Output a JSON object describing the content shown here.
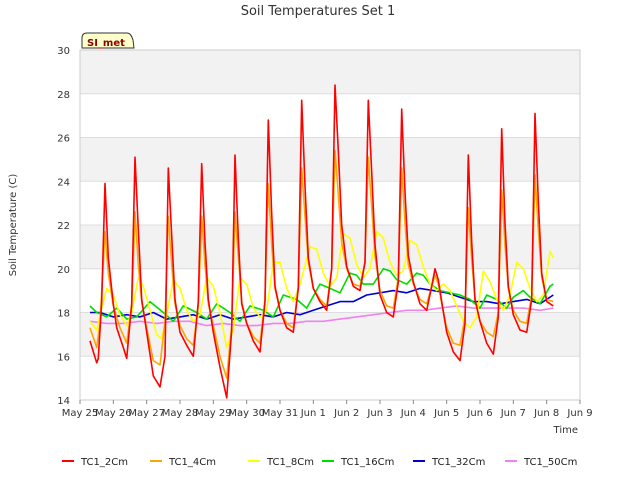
{
  "chart_data": {
    "type": "line",
    "title": "Soil Temperatures Set 1",
    "xlabel": "Time",
    "ylabel": "Soil Temperature (C)",
    "badge": "SI_met",
    "ylim": [
      14,
      30
    ],
    "yticks": [
      14,
      16,
      18,
      20,
      22,
      24,
      26,
      28,
      30
    ],
    "xlim": [
      0,
      15
    ],
    "xticks": [
      {
        "v": 0,
        "label": "May 25"
      },
      {
        "v": 1,
        "label": "May 26"
      },
      {
        "v": 2,
        "label": "May 27"
      },
      {
        "v": 3,
        "label": "May 28"
      },
      {
        "v": 4,
        "label": "May 29"
      },
      {
        "v": 5,
        "label": "May 30"
      },
      {
        "v": 6,
        "label": "May 31"
      },
      {
        "v": 7,
        "label": "Jun 1"
      },
      {
        "v": 8,
        "label": "Jun 2"
      },
      {
        "v": 9,
        "label": "Jun 3"
      },
      {
        "v": 10,
        "label": "Jun 4"
      },
      {
        "v": 11,
        "label": "Jun 5"
      },
      {
        "v": 12,
        "label": "Jun 6"
      },
      {
        "v": 13,
        "label": "Jun 7"
      },
      {
        "v": 14,
        "label": "Jun 8"
      },
      {
        "v": 15,
        "label": "Jun 9"
      }
    ],
    "grid": true,
    "legend_position": "bottom",
    "series": [
      {
        "name": "TC1_2Cm",
        "color": "#ff0000",
        "x": [
          0.3,
          0.5,
          0.55,
          0.65,
          0.75,
          0.85,
          1.0,
          1.1,
          1.3,
          1.4,
          1.55,
          1.65,
          1.75,
          1.85,
          2.0,
          2.2,
          2.4,
          2.55,
          2.65,
          2.75,
          2.85,
          3.0,
          3.2,
          3.4,
          3.55,
          3.65,
          3.75,
          3.85,
          4.0,
          4.2,
          4.4,
          4.55,
          4.65,
          4.75,
          4.85,
          5.0,
          5.2,
          5.4,
          5.55,
          5.65,
          5.75,
          5.85,
          6.0,
          6.2,
          6.4,
          6.55,
          6.65,
          6.75,
          6.85,
          7.0,
          7.2,
          7.4,
          7.55,
          7.65,
          7.75,
          7.85,
          8.0,
          8.2,
          8.4,
          8.55,
          8.65,
          8.75,
          8.85,
          9.0,
          9.2,
          9.4,
          9.55,
          9.65,
          9.75,
          9.85,
          10.0,
          10.2,
          10.4,
          10.55,
          10.65,
          10.75,
          10.85,
          11.0,
          11.2,
          11.4,
          11.55,
          11.65,
          11.75,
          11.85,
          12.0,
          12.2,
          12.4,
          12.55,
          12.65,
          12.75,
          12.85,
          13.0,
          13.2,
          13.4,
          13.55,
          13.65,
          13.75,
          13.85,
          14.0,
          14.2
        ],
        "y": [
          16.7,
          15.7,
          15.9,
          18.5,
          23.9,
          20.5,
          18.4,
          17.3,
          16.4,
          15.9,
          18.4,
          25.1,
          21.8,
          18.6,
          17.1,
          15.1,
          14.6,
          16.0,
          24.6,
          21.5,
          18.6,
          17.1,
          16.5,
          16.0,
          18.5,
          24.8,
          21.2,
          18.6,
          17.1,
          15.5,
          14.1,
          17.2,
          25.2,
          21.4,
          18.4,
          17.5,
          16.7,
          16.2,
          18.5,
          26.8,
          22.5,
          19.2,
          18.1,
          17.3,
          17.1,
          19.1,
          27.7,
          23.8,
          20.5,
          19.1,
          18.5,
          18.1,
          20.0,
          28.4,
          25.4,
          22.0,
          20.1,
          19.2,
          19.0,
          20.3,
          27.7,
          24.4,
          21.1,
          18.8,
          18.0,
          17.8,
          19.4,
          27.3,
          23.5,
          20.6,
          19.4,
          18.4,
          18.1,
          19.2,
          20.0,
          19.5,
          18.5,
          17.1,
          16.2,
          15.8,
          17.5,
          25.2,
          21.2,
          18.6,
          17.6,
          16.6,
          16.1,
          17.8,
          26.4,
          22.1,
          19.2,
          17.9,
          17.2,
          17.1,
          18.6,
          27.1,
          23.1,
          19.8,
          18.5,
          18.3
        ]
      },
      {
        "name": "TC1_4Cm",
        "color": "#ffa500",
        "x": [
          0.3,
          0.5,
          0.6,
          0.75,
          0.85,
          1.0,
          1.2,
          1.4,
          1.55,
          1.65,
          1.75,
          1.85,
          2.0,
          2.2,
          2.4,
          2.55,
          2.65,
          2.75,
          2.85,
          3.0,
          3.2,
          3.4,
          3.55,
          3.65,
          3.75,
          3.85,
          4.0,
          4.2,
          4.4,
          4.55,
          4.65,
          4.75,
          4.85,
          5.0,
          5.2,
          5.4,
          5.55,
          5.65,
          5.75,
          5.85,
          6.0,
          6.2,
          6.4,
          6.55,
          6.65,
          6.75,
          6.85,
          7.0,
          7.2,
          7.4,
          7.55,
          7.65,
          7.75,
          7.85,
          8.0,
          8.2,
          8.4,
          8.55,
          8.65,
          8.75,
          8.85,
          9.0,
          9.2,
          9.4,
          9.55,
          9.65,
          9.75,
          9.85,
          10.0,
          10.2,
          10.4,
          10.55,
          10.65,
          10.75,
          10.85,
          11.0,
          11.2,
          11.4,
          11.55,
          11.65,
          11.75,
          11.85,
          12.0,
          12.2,
          12.4,
          12.55,
          12.65,
          12.75,
          12.85,
          13.0,
          13.2,
          13.4,
          13.55,
          13.65,
          13.75,
          13.85,
          14.0,
          14.2
        ],
        "y": [
          17.3,
          16.4,
          17.5,
          21.7,
          19.8,
          18.3,
          17.3,
          16.6,
          18.3,
          22.6,
          20.2,
          18.5,
          17.3,
          15.8,
          15.6,
          17.6,
          22.4,
          20.2,
          18.4,
          17.4,
          16.8,
          16.5,
          18.3,
          22.4,
          20.2,
          18.4,
          17.4,
          16.0,
          15.0,
          17.4,
          22.6,
          20.6,
          18.5,
          17.5,
          16.9,
          16.6,
          18.6,
          23.9,
          21.1,
          19.1,
          18.1,
          17.5,
          17.3,
          19.2,
          24.6,
          22.4,
          20.3,
          19.1,
          18.6,
          18.3,
          20.0,
          25.4,
          23.4,
          21.2,
          20.0,
          19.3,
          19.2,
          20.3,
          25.1,
          22.8,
          20.6,
          19.0,
          18.3,
          18.2,
          19.6,
          24.6,
          22.1,
          20.2,
          19.3,
          18.6,
          18.4,
          19.2,
          19.7,
          19.3,
          18.4,
          17.3,
          16.6,
          16.5,
          17.8,
          22.8,
          20.4,
          18.6,
          17.6,
          17.1,
          16.9,
          18.0,
          23.6,
          21.1,
          19.1,
          18.1,
          17.6,
          17.5,
          18.8,
          24.3,
          21.8,
          19.6,
          18.6,
          18.5
        ]
      },
      {
        "name": "TC1_8Cm",
        "color": "#ffff00",
        "x": [
          0.3,
          0.5,
          0.65,
          0.8,
          1.0,
          1.2,
          1.4,
          1.55,
          1.75,
          1.9,
          2.1,
          2.3,
          2.45,
          2.6,
          2.8,
          3.0,
          3.2,
          3.4,
          3.6,
          3.8,
          4.0,
          4.2,
          4.4,
          4.6,
          4.8,
          5.0,
          5.2,
          5.4,
          5.6,
          5.8,
          6.0,
          6.2,
          6.4,
          6.6,
          6.9,
          7.1,
          7.3,
          7.5,
          7.7,
          7.9,
          8.1,
          8.3,
          8.5,
          8.7,
          8.9,
          9.1,
          9.3,
          9.5,
          9.7,
          9.9,
          10.1,
          10.3,
          10.5,
          10.7,
          10.9,
          11.1,
          11.3,
          11.5,
          11.7,
          11.9,
          12.1,
          12.3,
          12.5,
          12.7,
          12.9,
          13.1,
          13.3,
          13.5,
          13.7,
          13.9,
          14.1,
          14.2
        ],
        "y": [
          17.6,
          17.2,
          18.2,
          19.1,
          18.8,
          17.9,
          17.4,
          18.0,
          19.6,
          19.2,
          18.1,
          17.0,
          16.8,
          17.9,
          19.5,
          19.1,
          18.1,
          17.6,
          17.9,
          19.6,
          19.2,
          18.0,
          16.4,
          17.2,
          19.6,
          19.3,
          18.2,
          17.8,
          18.1,
          20.3,
          20.3,
          19.1,
          18.5,
          19.3,
          21.0,
          20.9,
          19.8,
          19.2,
          19.6,
          21.6,
          21.4,
          20.2,
          19.6,
          20.0,
          21.7,
          21.4,
          20.3,
          19.7,
          19.9,
          21.3,
          21.1,
          20.1,
          19.3,
          19.0,
          19.3,
          19.0,
          18.3,
          17.6,
          17.3,
          17.8,
          19.9,
          19.4,
          18.6,
          18.1,
          18.8,
          20.3,
          20.0,
          19.1,
          18.5,
          18.8,
          20.8,
          20.5
        ]
      },
      {
        "name": "TC1_16Cm",
        "color": "#00dd00",
        "x": [
          0.3,
          0.5,
          0.8,
          1.1,
          1.4,
          1.7,
          2.1,
          2.5,
          2.8,
          3.1,
          3.5,
          3.8,
          4.1,
          4.5,
          4.8,
          5.1,
          5.5,
          5.8,
          6.1,
          6.5,
          6.8,
          7.2,
          7.5,
          7.8,
          8.1,
          8.3,
          8.5,
          8.8,
          9.1,
          9.3,
          9.5,
          9.8,
          10.1,
          10.3,
          10.5,
          10.8,
          11.1,
          11.4,
          11.7,
          12.0,
          12.2,
          12.5,
          12.8,
          13.0,
          13.3,
          13.5,
          13.8,
          14.1,
          14.2
        ],
        "y": [
          18.3,
          18.0,
          17.8,
          18.2,
          17.7,
          17.8,
          18.5,
          18.0,
          17.6,
          18.3,
          18.0,
          17.7,
          18.4,
          18.0,
          17.6,
          18.3,
          18.1,
          17.8,
          18.8,
          18.6,
          18.2,
          19.3,
          19.1,
          18.9,
          19.8,
          19.7,
          19.3,
          19.3,
          20.0,
          19.9,
          19.5,
          19.3,
          19.8,
          19.7,
          19.3,
          19.0,
          18.9,
          18.8,
          18.6,
          18.2,
          18.8,
          18.6,
          18.2,
          18.7,
          19.0,
          18.7,
          18.4,
          19.2,
          19.3
        ]
      },
      {
        "name": "TC1_32Cm",
        "color": "#0000cc",
        "x": [
          0.3,
          0.6,
          1.0,
          1.4,
          1.8,
          2.2,
          2.6,
          3.0,
          3.4,
          3.8,
          4.2,
          4.6,
          5.0,
          5.4,
          5.8,
          6.2,
          6.6,
          7.0,
          7.4,
          7.8,
          8.2,
          8.6,
          9.0,
          9.4,
          9.8,
          10.2,
          10.6,
          11.0,
          11.4,
          11.8,
          12.2,
          12.6,
          13.0,
          13.4,
          13.8,
          14.2
        ],
        "y": [
          18.0,
          18.0,
          17.8,
          17.9,
          17.8,
          18.0,
          17.7,
          17.8,
          17.9,
          17.7,
          17.9,
          17.7,
          17.8,
          17.9,
          17.8,
          18.0,
          17.9,
          18.1,
          18.3,
          18.5,
          18.5,
          18.8,
          18.9,
          19.0,
          18.9,
          19.1,
          19.0,
          18.9,
          18.7,
          18.5,
          18.5,
          18.4,
          18.5,
          18.6,
          18.4,
          18.8
        ]
      },
      {
        "name": "TC1_50Cm",
        "color": "#ee82ee",
        "x": [
          0.3,
          0.8,
          1.3,
          1.8,
          2.3,
          2.8,
          3.3,
          3.8,
          4.3,
          4.8,
          5.3,
          5.8,
          6.3,
          6.8,
          7.3,
          7.8,
          8.3,
          8.8,
          9.3,
          9.8,
          10.3,
          10.8,
          11.3,
          11.8,
          12.3,
          12.8,
          13.3,
          13.8,
          14.2
        ],
        "y": [
          17.6,
          17.5,
          17.5,
          17.6,
          17.5,
          17.6,
          17.6,
          17.4,
          17.5,
          17.4,
          17.4,
          17.5,
          17.5,
          17.6,
          17.6,
          17.7,
          17.8,
          17.9,
          18.0,
          18.1,
          18.1,
          18.2,
          18.3,
          18.2,
          18.2,
          18.2,
          18.2,
          18.1,
          18.2
        ]
      }
    ]
  }
}
